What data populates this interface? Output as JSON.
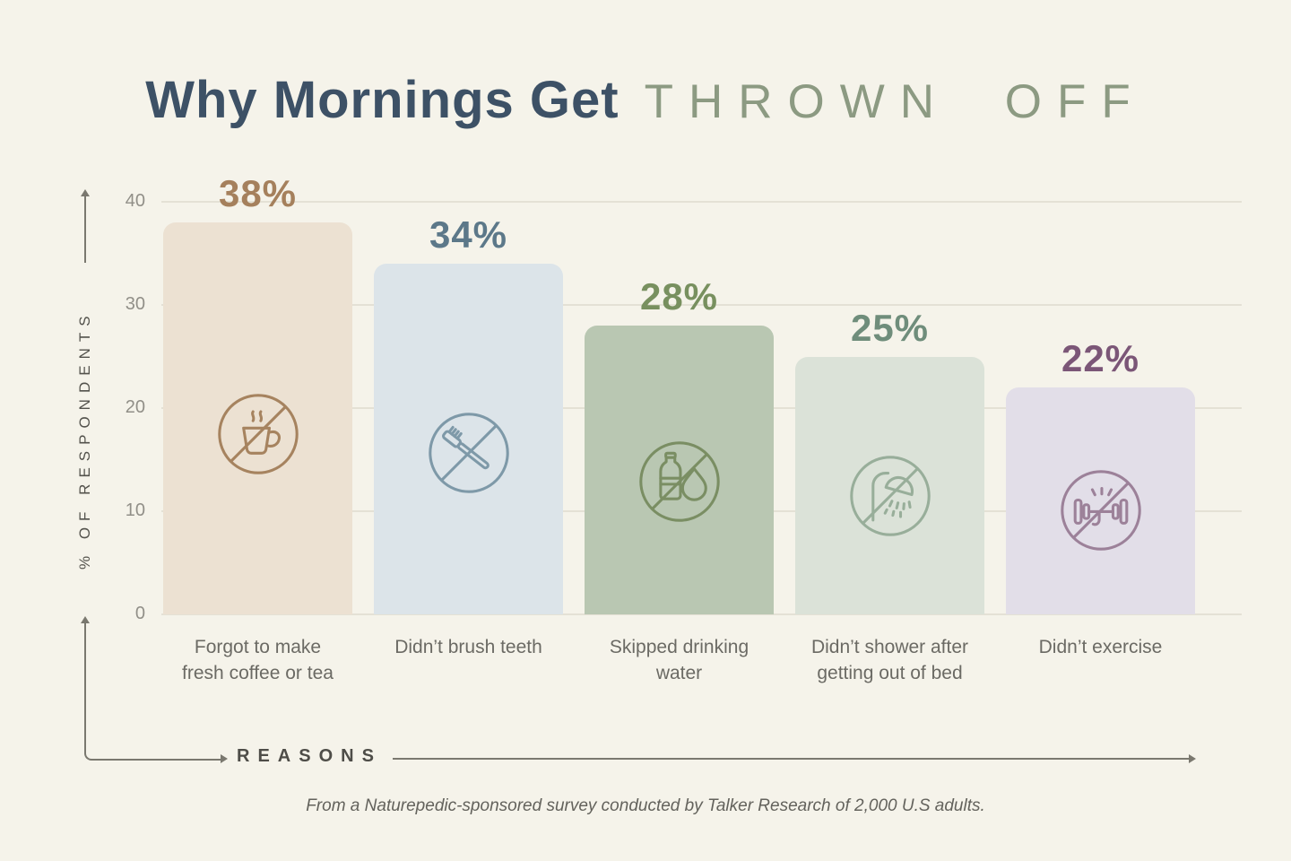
{
  "title": {
    "main": "Why Mornings Get",
    "accent": "THROWN OFF"
  },
  "y_axis": {
    "label": "% OF RESPONDENTS",
    "ticks": [
      40,
      30,
      20,
      10,
      0
    ],
    "max": 40
  },
  "x_axis": {
    "label": "REASONS"
  },
  "footer": "From a Naturepedic-sponsored survey conducted by Talker Research of 2,000 U.S adults.",
  "colors": {
    "background": "#f5f3ea",
    "title_main": "#3d5166",
    "title_accent": "#8c9a82",
    "gridline": "#e4e1d5",
    "tick_label": "#918f88",
    "axis_line": "#7a786f",
    "axis_title": "#53524c",
    "category_label": "#6b6a64",
    "footer_text": "#63625c"
  },
  "chart_data": {
    "type": "bar",
    "title": "Why Mornings Get Thrown Off",
    "xlabel": "Reasons",
    "ylabel": "% of Respondents",
    "ylim": [
      0,
      40
    ],
    "grid": true,
    "legend": "none",
    "categories": [
      "Forgot to make fresh coffee or tea",
      "Didn’t brush teeth",
      "Skipped drinking water",
      "Didn’t shower after getting out of bed",
      "Didn’t exercise"
    ],
    "values": [
      38,
      34,
      28,
      25,
      22
    ],
    "bars": [
      {
        "value": 38,
        "value_label": "38%",
        "category_lines": [
          "Forgot to make",
          "fresh coffee or tea"
        ],
        "fill": "#ece1d2",
        "label_color": "#a5805c",
        "icon_color": "#a6835f",
        "icon": "no-coffee-icon"
      },
      {
        "value": 34,
        "value_label": "34%",
        "category_lines": [
          "Didn’t brush teeth"
        ],
        "fill": "#dce4e9",
        "label_color": "#5c7889",
        "icon_color": "#7e99a8",
        "icon": "no-toothbrush-icon"
      },
      {
        "value": 28,
        "value_label": "28%",
        "category_lines": [
          "Skipped drinking",
          "water"
        ],
        "fill": "#b9c7b2",
        "label_color": "#78905f",
        "icon_color": "#7a8e63",
        "icon": "no-water-icon"
      },
      {
        "value": 25,
        "value_label": "25%",
        "category_lines": [
          "Didn’t shower after",
          "getting out of bed"
        ],
        "fill": "#dbe2d8",
        "label_color": "#6f8d7b",
        "icon_color": "#98ae9a",
        "icon": "no-shower-icon"
      },
      {
        "value": 22,
        "value_label": "22%",
        "category_lines": [
          "Didn’t exercise"
        ],
        "fill": "#e2dee8",
        "label_color": "#7b5677",
        "icon_color": "#9c8199",
        "icon": "no-dumbbell-icon"
      }
    ]
  }
}
